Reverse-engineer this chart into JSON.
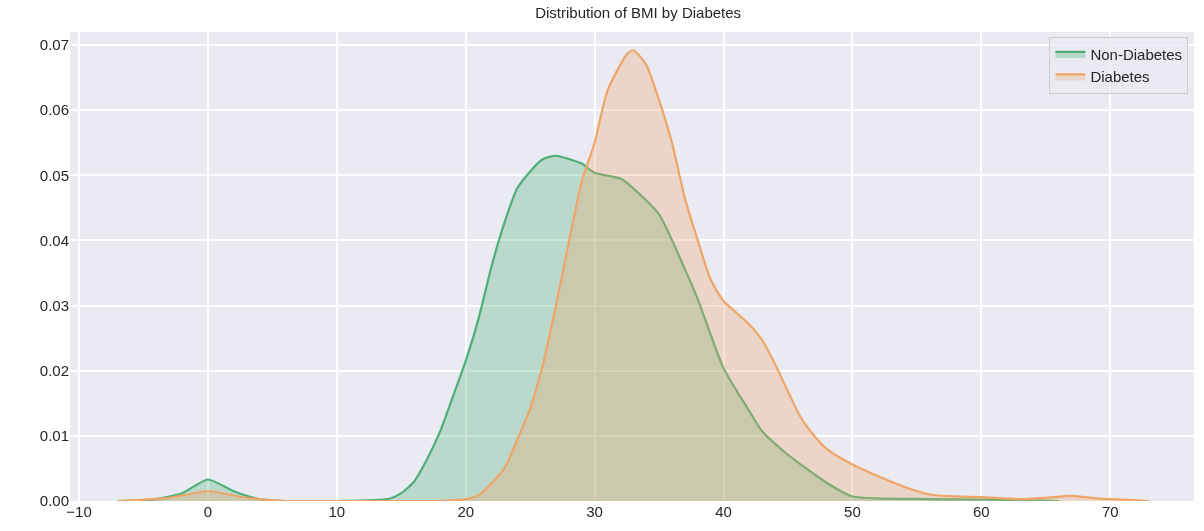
{
  "chart_data": {
    "type": "area",
    "title": "Distribution of BMI by Diabetes",
    "xlim": [
      -10.7,
      76.5
    ],
    "ylim": [
      0,
      0.072
    ],
    "xticks": [
      {
        "value": -10,
        "label": "−10"
      },
      0,
      10,
      20,
      30,
      40,
      50,
      60,
      70
    ],
    "yticks": [
      {
        "value": 0,
        "label": "0.00"
      },
      {
        "value": 0.01,
        "label": "0.01"
      },
      {
        "value": 0.02,
        "label": "0.02"
      },
      {
        "value": 0.03,
        "label": "0.03"
      },
      {
        "value": 0.04,
        "label": "0.04"
      },
      {
        "value": 0.05,
        "label": "0.05"
      },
      {
        "value": 0.06,
        "label": "0.06"
      },
      {
        "value": 0.07,
        "label": "0.07"
      }
    ],
    "grid": true,
    "legend": "top right",
    "marker": "none",
    "line_style": "solid",
    "series": [
      {
        "name": "Non-Diabetes",
        "color": "#4eae78",
        "x": [
          -7,
          -4,
          -2,
          0,
          2,
          4,
          6,
          10,
          14,
          15,
          16,
          17,
          18,
          19,
          20,
          21,
          22,
          23,
          24,
          25,
          26,
          27,
          28,
          29,
          30,
          32,
          33,
          35,
          37,
          38,
          40,
          42,
          43,
          45,
          48,
          50,
          52,
          56,
          60,
          64,
          66
        ],
        "values": [
          0,
          0.0003,
          0.0012,
          0.0033,
          0.0015,
          0.0003,
          0,
          0,
          0.0003,
          0.0012,
          0.003,
          0.0064,
          0.0106,
          0.016,
          0.0215,
          0.028,
          0.036,
          0.0427,
          0.048,
          0.0506,
          0.0525,
          0.053,
          0.0525,
          0.0518,
          0.0504,
          0.0495,
          0.048,
          0.044,
          0.0356,
          0.031,
          0.0204,
          0.0138,
          0.0107,
          0.0071,
          0.0028,
          0.0007,
          0.0004,
          0.0003,
          0.0002,
          0.0001,
          0
        ]
      },
      {
        "name": "Diabetes",
        "color": "#eea566",
        "x": [
          -7,
          -3,
          0,
          3,
          6,
          10,
          18,
          20,
          21,
          22,
          23,
          24,
          25,
          26,
          27,
          28,
          29,
          30,
          31,
          32.5,
          33,
          34,
          35,
          36,
          37,
          38,
          39,
          40,
          41,
          42,
          43,
          44,
          45,
          46,
          47,
          48,
          50,
          52,
          54,
          56,
          58,
          60,
          63,
          65,
          67,
          69,
          71,
          73
        ],
        "values": [
          0,
          0.0005,
          0.0015,
          0.0005,
          0,
          0,
          0,
          0.0003,
          0.0009,
          0.0027,
          0.005,
          0.0094,
          0.0142,
          0.021,
          0.03,
          0.0397,
          0.049,
          0.055,
          0.063,
          0.0686,
          0.0692,
          0.067,
          0.0615,
          0.055,
          0.0465,
          0.04,
          0.034,
          0.0307,
          0.0289,
          0.0271,
          0.0247,
          0.021,
          0.0168,
          0.0128,
          0.0101,
          0.008,
          0.0056,
          0.0038,
          0.0022,
          0.001,
          0.0007,
          0.0006,
          0.0003,
          0.0005,
          0.0008,
          0.0004,
          0.0002,
          0
        ]
      }
    ]
  }
}
